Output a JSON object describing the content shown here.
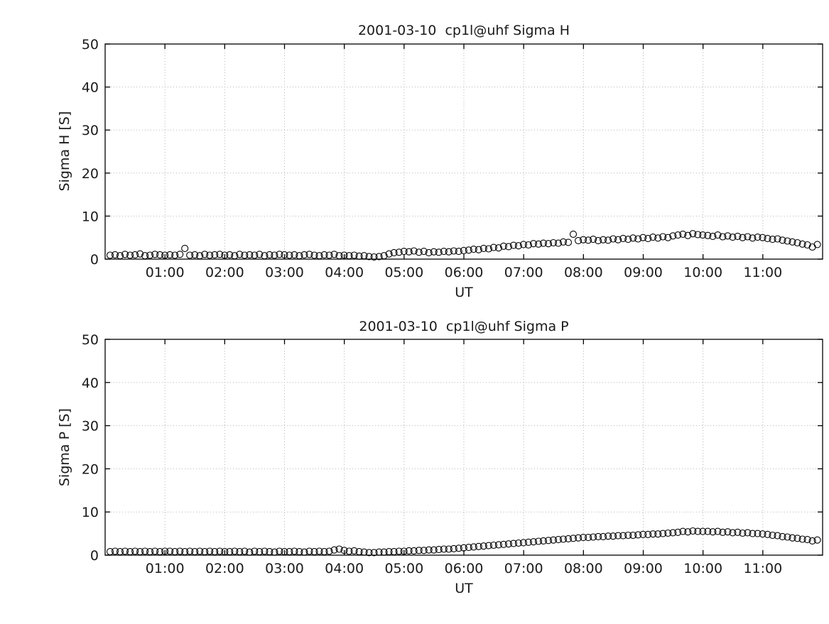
{
  "figure": {
    "background": "#ffffff",
    "axis_color": "#000000",
    "grid_color": "#b5b5b5",
    "marker_color": "#000000"
  },
  "chart_data": [
    {
      "type": "scatter",
      "title": "2001-03-10  cp1l@uhf Sigma H",
      "xlabel": "UT",
      "ylabel": "Sigma H [S]",
      "xlim": [
        0,
        12
      ],
      "ylim": [
        0,
        50
      ],
      "xtick_hours": [
        1,
        2,
        3,
        4,
        5,
        6,
        7,
        8,
        9,
        10,
        11
      ],
      "xtick_labels": [
        "01:00",
        "02:00",
        "03:00",
        "04:00",
        "05:00",
        "06:00",
        "07:00",
        "08:00",
        "09:00",
        "10:00",
        "11:00"
      ],
      "yticks": [
        0,
        10,
        20,
        30,
        40,
        50
      ],
      "grid": true,
      "marker": "open-circle",
      "x_start_hour": 0.0833,
      "x_step_hour": 0.0833,
      "values": [
        0.9,
        1.0,
        0.8,
        1.1,
        0.9,
        1.0,
        1.2,
        0.8,
        0.9,
        1.1,
        1.0,
        0.9,
        1.0,
        0.9,
        1.1,
        2.5,
        0.9,
        1.0,
        0.8,
        1.1,
        0.9,
        1.0,
        1.1,
        0.9,
        1.0,
        0.8,
        1.1,
        0.9,
        1.0,
        0.9,
        1.1,
        0.8,
        1.0,
        0.9,
        1.1,
        1.0,
        0.9,
        1.0,
        0.8,
        1.0,
        1.1,
        0.9,
        0.8,
        1.0,
        0.9,
        1.1,
        0.8,
        0.9,
        0.8,
        0.9,
        0.7,
        0.8,
        0.6,
        0.5,
        0.6,
        0.8,
        1.2,
        1.5,
        1.6,
        1.8,
        1.7,
        1.9,
        1.6,
        1.8,
        1.5,
        1.7,
        1.6,
        1.8,
        1.7,
        1.9,
        1.8,
        2.0,
        2.1,
        2.3,
        2.2,
        2.5,
        2.4,
        2.7,
        2.6,
        3.0,
        2.9,
        3.2,
        3.1,
        3.4,
        3.3,
        3.6,
        3.5,
        3.7,
        3.6,
        3.8,
        3.7,
        4.0,
        3.9,
        5.8,
        4.3,
        4.5,
        4.4,
        4.6,
        4.3,
        4.5,
        4.4,
        4.7,
        4.5,
        4.8,
        4.6,
        4.9,
        4.7,
        5.0,
        4.8,
        5.1,
        4.9,
        5.2,
        5.0,
        5.4,
        5.6,
        5.8,
        5.5,
        5.9,
        5.7,
        5.6,
        5.5,
        5.3,
        5.6,
        5.2,
        5.4,
        5.1,
        5.3,
        5.0,
        5.2,
        4.9,
        5.1,
        5.0,
        4.8,
        4.6,
        4.7,
        4.4,
        4.2,
        4.0,
        3.8,
        3.5,
        3.3,
        2.8,
        3.4
      ]
    },
    {
      "type": "scatter",
      "title": "2001-03-10  cp1l@uhf Sigma P",
      "xlabel": "UT",
      "ylabel": "Sigma P [S]",
      "xlim": [
        0,
        12
      ],
      "ylim": [
        0,
        50
      ],
      "xtick_hours": [
        1,
        2,
        3,
        4,
        5,
        6,
        7,
        8,
        9,
        10,
        11
      ],
      "xtick_labels": [
        "01:00",
        "02:00",
        "03:00",
        "04:00",
        "05:00",
        "06:00",
        "07:00",
        "08:00",
        "09:00",
        "10:00",
        "11:00"
      ],
      "yticks": [
        0,
        10,
        20,
        30,
        40,
        50
      ],
      "grid": true,
      "marker": "open-circle",
      "x_start_hour": 0.0833,
      "x_step_hour": 0.0833,
      "values": [
        0.8,
        0.9,
        0.8,
        0.9,
        0.8,
        0.9,
        0.8,
        0.9,
        0.8,
        0.9,
        0.8,
        0.9,
        0.9,
        0.8,
        0.9,
        0.8,
        0.9,
        0.8,
        0.9,
        0.8,
        0.9,
        0.8,
        0.9,
        0.8,
        0.8,
        0.9,
        0.8,
        0.9,
        0.7,
        0.9,
        0.8,
        0.9,
        0.8,
        0.7,
        0.9,
        0.8,
        0.8,
        0.9,
        0.8,
        0.7,
        0.9,
        0.8,
        0.9,
        0.8,
        0.9,
        1.2,
        1.4,
        1.1,
        0.9,
        1.0,
        0.8,
        0.7,
        0.6,
        0.6,
        0.7,
        0.7,
        0.8,
        0.8,
        0.9,
        0.9,
        1.0,
        1.0,
        1.1,
        1.1,
        1.2,
        1.2,
        1.3,
        1.4,
        1.4,
        1.5,
        1.6,
        1.7,
        1.8,
        1.9,
        2.0,
        2.1,
        2.2,
        2.3,
        2.4,
        2.5,
        2.6,
        2.7,
        2.8,
        2.9,
        3.0,
        3.1,
        3.2,
        3.3,
        3.4,
        3.5,
        3.6,
        3.7,
        3.8,
        3.9,
        4.0,
        4.1,
        4.1,
        4.2,
        4.3,
        4.3,
        4.4,
        4.4,
        4.5,
        4.5,
        4.6,
        4.6,
        4.7,
        4.8,
        4.8,
        4.9,
        4.9,
        5.0,
        5.1,
        5.2,
        5.3,
        5.5,
        5.4,
        5.6,
        5.5,
        5.5,
        5.5,
        5.4,
        5.5,
        5.3,
        5.4,
        5.2,
        5.3,
        5.1,
        5.2,
        5.0,
        5.0,
        4.9,
        4.8,
        4.6,
        4.5,
        4.3,
        4.2,
        4.0,
        3.9,
        3.7,
        3.6,
        3.3,
        3.5
      ]
    }
  ]
}
